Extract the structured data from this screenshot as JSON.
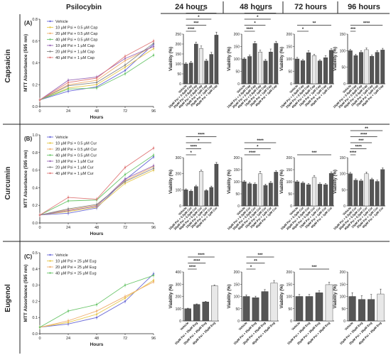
{
  "header": {
    "drug": "Psilocybin",
    "times": [
      "24 hours",
      "48 hours",
      "72 hours",
      "96 hours"
    ]
  },
  "colors": {
    "bar_dark": "#555555",
    "bar_light": "#e8e8e8",
    "line_blue": "#6a6ad8",
    "line_yellow": "#e6c84a",
    "line_orange": "#f0b070",
    "line_green": "#6cc66c",
    "line_purple": "#9a6ab8",
    "line_gray": "#888888",
    "line_red": "#e07a7a"
  },
  "chart_data": [
    {
      "id": "A",
      "panel_label": "(A)",
      "row_label": "Capsaicin",
      "type": "line",
      "ylabel": "MTT Absorbance (595 nm)",
      "xlabel": "Hours",
      "x": [
        0,
        24,
        48,
        72,
        96
      ],
      "xticks": [
        "0",
        "24",
        "48",
        "72",
        "96"
      ],
      "ylim": [
        0,
        0.8
      ],
      "yticks": [
        "0.0",
        "0.2",
        "0.4",
        "0.6",
        "0.8"
      ],
      "series": [
        {
          "name": "Vehicle",
          "color": "line_blue",
          "values": [
            0.06,
            0.14,
            0.18,
            0.33,
            0.57
          ]
        },
        {
          "name": "10 µM Psi + 0.5 µM Cap",
          "color": "line_yellow",
          "values": [
            0.06,
            0.17,
            0.2,
            0.36,
            0.53
          ]
        },
        {
          "name": "20 µM Psi + 0.5 µM Cap",
          "color": "line_orange",
          "values": [
            0.06,
            0.2,
            0.24,
            0.42,
            0.55
          ]
        },
        {
          "name": "40 µM Psi + 0.5 µM Cap",
          "color": "line_green",
          "values": [
            0.06,
            0.16,
            0.17,
            0.3,
            0.47
          ]
        },
        {
          "name": "10 µM Psi + 1 µM Cap",
          "color": "line_purple",
          "values": [
            0.06,
            0.24,
            0.27,
            0.44,
            0.55
          ]
        },
        {
          "name": "20 µM Psi + 1 µM Cap",
          "color": "line_gray",
          "values": [
            0.06,
            0.19,
            0.22,
            0.38,
            0.58
          ]
        },
        {
          "name": "40 µM Psi + 1 µM Cap",
          "color": "line_red",
          "values": [
            0.06,
            0.22,
            0.26,
            0.46,
            0.6
          ]
        }
      ]
    },
    {
      "id": "B",
      "panel_label": "(B)",
      "row_label": "Curcumin",
      "type": "line",
      "ylabel": "MTT Absorbance (595 nm)",
      "xlabel": "Hours",
      "x": [
        0,
        24,
        48,
        72,
        96
      ],
      "xticks": [
        "0",
        "24",
        "48",
        "72",
        "96"
      ],
      "ylim": [
        0,
        1.0
      ],
      "yticks": [
        "0.0",
        "0.2",
        "0.4",
        "0.6",
        "0.8",
        "1.0"
      ],
      "series": [
        {
          "name": "Vehicle",
          "color": "line_blue",
          "values": [
            0.09,
            0.11,
            0.17,
            0.49,
            0.75
          ]
        },
        {
          "name": "10 µM Psi + 0.5 µM Cur",
          "color": "line_yellow",
          "values": [
            0.09,
            0.13,
            0.18,
            0.45,
            0.6
          ]
        },
        {
          "name": "20 µM Psi + 0.5 µM Cur",
          "color": "line_orange",
          "values": [
            0.09,
            0.15,
            0.2,
            0.48,
            0.64
          ]
        },
        {
          "name": "40 µM Psi + 0.5 µM Cur",
          "color": "line_green",
          "values": [
            0.09,
            0.25,
            0.26,
            0.55,
            0.77
          ]
        },
        {
          "name": "10 µM Psi + 1 µM Cur",
          "color": "line_purple",
          "values": [
            0.09,
            0.14,
            0.19,
            0.5,
            0.65
          ]
        },
        {
          "name": "20 µM Psi + 1 µM Cur",
          "color": "line_gray",
          "values": [
            0.09,
            0.16,
            0.21,
            0.47,
            0.62
          ]
        },
        {
          "name": "40 µM Psi + 1 µM Cur",
          "color": "line_red",
          "values": [
            0.09,
            0.29,
            0.27,
            0.63,
            0.85
          ]
        }
      ]
    },
    {
      "id": "C",
      "panel_label": "(C)",
      "row_label": "Eugenol",
      "type": "line",
      "ylabel": "MTT Absorbance (595 nm)",
      "xlabel": "Hours",
      "x": [
        0,
        24,
        48,
        72,
        96
      ],
      "xticks": [
        "0",
        "24",
        "48",
        "72",
        "96"
      ],
      "ylim": [
        0,
        0.5
      ],
      "yticks": [
        "0.0",
        "0.1",
        "0.2",
        "0.3",
        "0.4",
        "0.5"
      ],
      "series": [
        {
          "name": "Vehicle",
          "color": "line_blue",
          "values": [
            0.04,
            0.06,
            0.1,
            0.2,
            0.37
          ]
        },
        {
          "name": "10 µM Psi + 25 µM Eug",
          "color": "line_yellow",
          "values": [
            0.04,
            0.07,
            0.12,
            0.22,
            0.33
          ]
        },
        {
          "name": "20 µM Psi + 25 µM Eug",
          "color": "line_orange",
          "values": [
            0.04,
            0.08,
            0.14,
            0.23,
            0.32
          ]
        },
        {
          "name": "40 µM Psi + 25 µM Eug",
          "color": "line_green",
          "values": [
            0.04,
            0.14,
            0.18,
            0.3,
            0.36
          ]
        }
      ]
    },
    {
      "id": "A-24",
      "type": "bar",
      "ylabel": "Viability (%)",
      "categories": [
        "Vehicle",
        "10µM Psi + 0.5µM Cap",
        "20µM Psi + 0.5µM Cap",
        "40µM Psi + 0.5µM Cap",
        "10µM Psi + 1µM Cap",
        "20µM Psi + 1µM Cap",
        "40µM Psi + 1µM Cap"
      ],
      "values": [
        100,
        105,
        200,
        178,
        115,
        148,
        245
      ],
      "errors": [
        6,
        8,
        10,
        12,
        8,
        10,
        15
      ],
      "shades": [
        "dark",
        "dark",
        "dark",
        "light",
        "dark",
        "dark",
        "dark"
      ],
      "ylim": [
        0,
        250
      ],
      "yticks": [
        "0",
        "50",
        "100",
        "150",
        "200",
        "250"
      ],
      "sig": [
        {
          "stars": "****",
          "from": 0,
          "to": 6
        },
        {
          "stars": "*",
          "from": 0,
          "to": 5
        },
        {
          "stars": "***",
          "from": 0,
          "to": 4
        },
        {
          "stars": "****",
          "from": 0,
          "to": 2
        }
      ]
    },
    {
      "id": "A-48",
      "type": "bar",
      "ylabel": "Viability (%)",
      "categories": [
        "Vehicle",
        "10µM Psi + 0.5µM Cap",
        "20µM Psi + 0.5µM Cap",
        "40µM Psi + 0.5µM Cap",
        "10µM Psi + 1µM Cap",
        "20µM Psi + 1µM Cap",
        "40µM Psi + 1µM Cap"
      ],
      "values": [
        100,
        110,
        162,
        128,
        92,
        128,
        163
      ],
      "errors": [
        5,
        6,
        8,
        7,
        6,
        12,
        8
      ],
      "shades": [
        "dark",
        "dark",
        "dark",
        "light",
        "dark",
        "dark",
        "dark"
      ],
      "ylim": [
        0,
        200
      ],
      "yticks": [
        "0",
        "50",
        "100",
        "150",
        "200"
      ],
      "sig": [
        {
          "stars": "****",
          "from": 0,
          "to": 6
        },
        {
          "stars": "*",
          "from": 0,
          "to": 5
        },
        {
          "stars": "*",
          "from": 0,
          "to": 4
        },
        {
          "stars": "****",
          "from": 0,
          "to": 2
        }
      ]
    },
    {
      "id": "A-72",
      "type": "bar",
      "ylabel": "Viability (%)",
      "categories": [
        "Vehicle",
        "10µM Psi + 0.5µM Cap",
        "20µM Psi + 0.5µM Cap",
        "40µM Psi + 0.5µM Cap",
        "10µM Psi + 1µM Cap",
        "20µM Psi + 1µM Cap",
        "40µM Psi + 1µM Cap"
      ],
      "values": [
        100,
        93,
        125,
        113,
        92,
        105,
        135
      ],
      "errors": [
        6,
        5,
        8,
        6,
        5,
        8,
        6
      ],
      "shades": [
        "dark",
        "dark",
        "dark",
        "light",
        "dark",
        "dark",
        "dark"
      ],
      "ylim": [
        0,
        200
      ],
      "yticks": [
        "0",
        "50",
        "100",
        "150",
        "200"
      ],
      "sig": [
        {
          "stars": "**",
          "from": 0,
          "to": 6
        },
        {
          "stars": "*",
          "from": 0,
          "to": 2
        }
      ]
    },
    {
      "id": "A-96",
      "type": "bar",
      "ylabel": "Viability (%)",
      "categories": [
        "Vehicle",
        "10µM Psi + 0.5µM Cap",
        "20µM Psi + 0.5µM Cap",
        "40µM Psi + 0.5µM Cap",
        "10µM Psi + 1µM Cap",
        "20µM Psi + 1µM Cap",
        "40µM Psi + 1µM Cap"
      ],
      "values": [
        100,
        85,
        95,
        103,
        83,
        95,
        102
      ],
      "errors": [
        4,
        4,
        5,
        5,
        4,
        5,
        5
      ],
      "shades": [
        "dark",
        "dark",
        "dark",
        "light",
        "dark",
        "dark",
        "dark"
      ],
      "ylim": [
        0,
        150
      ],
      "yticks": [
        "0",
        "50",
        "100",
        "150"
      ],
      "sig": [
        {
          "stars": "****",
          "from": 0,
          "to": 6
        },
        {
          "stars": "***",
          "from": 0,
          "to": 1
        }
      ]
    },
    {
      "id": "B-24",
      "type": "bar",
      "ylabel": "Viability (%)",
      "categories": [
        "Vehicle",
        "10µM Psi + 0.5µM Cur",
        "20µM Psi + 0.5µM Cur",
        "40µM Psi + 0.5µM Cur",
        "10µM Psi + 1µM Cur",
        "20µM Psi + 1µM Cur",
        "40µM Psi + 1µM Cur"
      ],
      "values": [
        100,
        92,
        120,
        215,
        95,
        115,
        260
      ],
      "errors": [
        6,
        6,
        8,
        8,
        6,
        8,
        10
      ],
      "shades": [
        "dark",
        "dark",
        "dark",
        "light",
        "dark",
        "dark",
        "dark"
      ],
      "ylim": [
        0,
        300
      ],
      "yticks": [
        "0",
        "100",
        "200",
        "300"
      ],
      "sig": [
        {
          "stars": "****",
          "from": 0,
          "to": 6
        },
        {
          "stars": "*",
          "from": 0,
          "to": 5
        },
        {
          "stars": "****",
          "from": 0,
          "to": 3
        },
        {
          "stars": "*",
          "from": 0,
          "to": 2
        }
      ]
    },
    {
      "id": "B-48",
      "type": "bar",
      "ylabel": "Viability (%)",
      "categories": [
        "Vehicle",
        "10µM Psi + 0.5µM Cur",
        "20µM Psi + 0.5µM Cur",
        "40µM Psi + 0.5µM Cur",
        "10µM Psi + 1µM Cur",
        "20µM Psi + 1µM Cur",
        "40µM Psi + 1µM Cur"
      ],
      "values": [
        100,
        92,
        90,
        133,
        85,
        95,
        140
      ],
      "errors": [
        5,
        5,
        5,
        10,
        5,
        6,
        6
      ],
      "shades": [
        "dark",
        "dark",
        "dark",
        "light",
        "dark",
        "dark",
        "dark"
      ],
      "ylim": [
        0,
        200
      ],
      "yticks": [
        "0",
        "50",
        "100",
        "150",
        "200"
      ],
      "sig": [
        {
          "stars": "****",
          "from": 0,
          "to": 6
        },
        {
          "stars": "*",
          "from": 0,
          "to": 5
        },
        {
          "stars": "****",
          "from": 0,
          "to": 3
        }
      ]
    },
    {
      "id": "B-72",
      "type": "bar",
      "ylabel": "Viability (%)",
      "categories": [
        "Vehicle",
        "10µM Psi + 0.5µM Cur",
        "20µM Psi + 0.5µM Cur",
        "40µM Psi + 0.5µM Cur",
        "10µM Psi + 1µM Cur",
        "20µM Psi + 1µM Cur",
        "40µM Psi + 1µM Cur"
      ],
      "values": [
        100,
        95,
        88,
        118,
        90,
        88,
        135
      ],
      "errors": [
        5,
        5,
        5,
        8,
        5,
        5,
        6
      ],
      "shades": [
        "dark",
        "dark",
        "dark",
        "light",
        "dark",
        "dark",
        "dark"
      ],
      "ylim": [
        0,
        200
      ],
      "yticks": [
        "0",
        "50",
        "100",
        "150",
        "200"
      ],
      "sig": [
        {
          "stars": "***",
          "from": 0,
          "to": 6
        }
      ]
    },
    {
      "id": "B-96",
      "type": "bar",
      "ylabel": "Viability (%)",
      "categories": [
        "Vehicle",
        "10µM Psi + 0.5µM Cur",
        "20µM Psi + 0.5µM Cur",
        "40µM Psi + 0.5µM Cur",
        "10µM Psi + 1µM Cur",
        "20µM Psi + 1µM Cur",
        "40µM Psi + 1µM Cur"
      ],
      "values": [
        100,
        80,
        78,
        100,
        82,
        76,
        113
      ],
      "errors": [
        4,
        4,
        4,
        5,
        4,
        4,
        5
      ],
      "shades": [
        "dark",
        "dark",
        "dark",
        "light",
        "dark",
        "dark",
        "dark"
      ],
      "ylim": [
        0,
        150
      ],
      "yticks": [
        "0",
        "50",
        "100",
        "150"
      ],
      "sig": [
        {
          "stars": "**",
          "from": 0,
          "to": 6
        },
        {
          "stars": "****",
          "from": 0,
          "to": 5
        },
        {
          "stars": "***",
          "from": 0,
          "to": 4
        },
        {
          "stars": "****",
          "from": 0,
          "to": 3
        },
        {
          "stars": "****",
          "from": 0,
          "to": 1
        }
      ]
    },
    {
      "id": "C-24",
      "type": "bar",
      "ylabel": "Viability (%)",
      "categories": [
        "Vehicle",
        "10µM Psi + 25µM Eug",
        "20µM Psi + 25µM Eug",
        "40µM Psi + 25µM Eug"
      ],
      "values": [
        100,
        135,
        155,
        288
      ],
      "errors": [
        4,
        4,
        5,
        6
      ],
      "shades": [
        "dark",
        "dark",
        "dark",
        "light"
      ],
      "ylim": [
        0,
        400
      ],
      "yticks": [
        "0",
        "100",
        "200",
        "300",
        "400"
      ],
      "sig": [
        {
          "stars": "****",
          "from": 0,
          "to": 3
        },
        {
          "stars": "****",
          "from": 0,
          "to": 2
        },
        {
          "stars": "****",
          "from": 0,
          "to": 1
        }
      ]
    },
    {
      "id": "C-48",
      "type": "bar",
      "ylabel": "Viability (%)",
      "categories": [
        "Vehicle",
        "10µM Psi + 25µM Eug",
        "20µM Psi + 25µM Eug",
        "40µM Psi + 25µM Eug"
      ],
      "values": [
        100,
        95,
        120,
        155
      ],
      "errors": [
        6,
        6,
        8,
        10
      ],
      "shades": [
        "dark",
        "dark",
        "dark",
        "light"
      ],
      "ylim": [
        0,
        200
      ],
      "yticks": [
        "0",
        "50",
        "100",
        "150",
        "200"
      ],
      "sig": [
        {
          "stars": "***",
          "from": 0,
          "to": 3
        },
        {
          "stars": "**",
          "from": 0,
          "to": 2
        },
        {
          "stars": "*",
          "from": 0,
          "to": 1
        }
      ]
    },
    {
      "id": "C-72",
      "type": "bar",
      "ylabel": "Viability (%)",
      "categories": [
        "Vehicle",
        "10µM Psi + 25µM Eug",
        "20µM Psi + 25µM Eug",
        "40µM Psi + 25µM Eug"
      ],
      "values": [
        100,
        100,
        115,
        148
      ],
      "errors": [
        8,
        8,
        8,
        10
      ],
      "shades": [
        "dark",
        "dark",
        "dark",
        "light"
      ],
      "ylim": [
        0,
        200
      ],
      "yticks": [
        "0",
        "50",
        "100",
        "150",
        "200"
      ],
      "sig": [
        {
          "stars": "***",
          "from": 0,
          "to": 3
        }
      ]
    },
    {
      "id": "C-96",
      "type": "bar",
      "ylabel": "Viability (%)",
      "categories": [
        "Vehicle",
        "10µM Psi + 25µM Eug",
        "20µM Psi + 25µM Eug",
        "40µM Psi + 25µM Eug"
      ],
      "values": [
        100,
        88,
        88,
        110
      ],
      "errors": [
        15,
        15,
        20,
        20
      ],
      "shades": [
        "dark",
        "dark",
        "dark",
        "light"
      ],
      "ylim": [
        0,
        200
      ],
      "yticks": [
        "0",
        "50",
        "100",
        "150",
        "200"
      ],
      "sig": []
    }
  ]
}
